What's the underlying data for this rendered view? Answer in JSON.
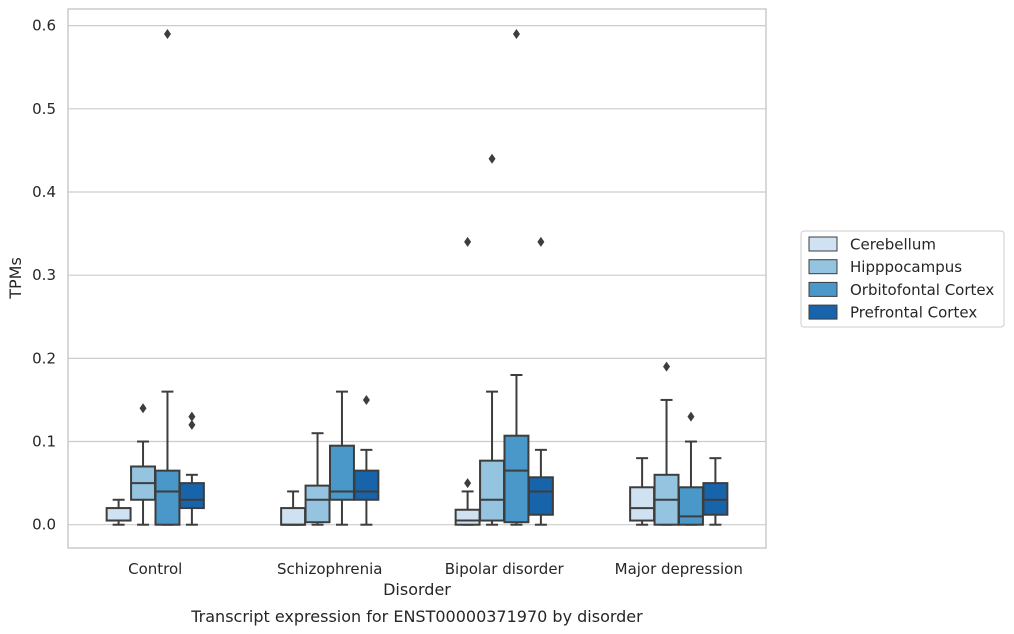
{
  "chart_data": {
    "type": "box",
    "title": "",
    "caption": "Transcript expression for ENST00000371970 by disorder",
    "xlabel": "Disorder",
    "ylabel": "TPMs",
    "ylim": [
      -0.028,
      0.62
    ],
    "yticks": [
      "0.0",
      "0.1",
      "0.2",
      "0.3",
      "0.4",
      "0.5",
      "0.6"
    ],
    "grid": true,
    "legend_position": "right",
    "categories": [
      "Control",
      "Schizophrenia",
      "Bipolar disorder",
      "Major depression"
    ],
    "series": [
      {
        "name": "Cerebellum",
        "color": "#d0e1f2",
        "boxes": [
          {
            "whislo": 0.0,
            "q1": 0.005,
            "med": 0.005,
            "q3": 0.02,
            "whishi": 0.03,
            "fliers": []
          },
          {
            "whislo": 0.0,
            "q1": 0.0,
            "med": 0.0,
            "q3": 0.02,
            "whishi": 0.04,
            "fliers": []
          },
          {
            "whislo": 0.0,
            "q1": 0.0,
            "med": 0.005,
            "q3": 0.018,
            "whishi": 0.04,
            "fliers": [
              0.05,
              0.34
            ]
          },
          {
            "whislo": 0.0,
            "q1": 0.005,
            "med": 0.02,
            "q3": 0.045,
            "whishi": 0.08,
            "fliers": []
          }
        ]
      },
      {
        "name": "Hipppocampus",
        "color": "#94c4df",
        "boxes": [
          {
            "whislo": 0.0,
            "q1": 0.03,
            "med": 0.05,
            "q3": 0.07,
            "whishi": 0.1,
            "fliers": [
              0.14
            ]
          },
          {
            "whislo": 0.0,
            "q1": 0.003,
            "med": 0.03,
            "q3": 0.047,
            "whishi": 0.11,
            "fliers": []
          },
          {
            "whislo": 0.0,
            "q1": 0.005,
            "med": 0.03,
            "q3": 0.077,
            "whishi": 0.16,
            "fliers": [
              0.44
            ]
          },
          {
            "whislo": 0.0,
            "q1": 0.0,
            "med": 0.03,
            "q3": 0.06,
            "whishi": 0.15,
            "fliers": [
              0.19
            ]
          }
        ]
      },
      {
        "name": "Orbitofontal Cortex",
        "color": "#4a98c9",
        "boxes": [
          {
            "whislo": 0.0,
            "q1": 0.0,
            "med": 0.04,
            "q3": 0.065,
            "whishi": 0.16,
            "fliers": [
              0.59
            ]
          },
          {
            "whislo": 0.0,
            "q1": 0.03,
            "med": 0.04,
            "q3": 0.095,
            "whishi": 0.16,
            "fliers": []
          },
          {
            "whislo": 0.0,
            "q1": 0.003,
            "med": 0.065,
            "q3": 0.107,
            "whishi": 0.18,
            "fliers": [
              0.59
            ]
          },
          {
            "whislo": 0.0,
            "q1": 0.0,
            "med": 0.01,
            "q3": 0.045,
            "whishi": 0.1,
            "fliers": [
              0.13
            ]
          }
        ]
      },
      {
        "name": "Prefrontal Cortex",
        "color": "#1764ab",
        "boxes": [
          {
            "whislo": 0.0,
            "q1": 0.02,
            "med": 0.03,
            "q3": 0.05,
            "whishi": 0.06,
            "fliers": [
              0.12,
              0.13
            ]
          },
          {
            "whislo": 0.0,
            "q1": 0.03,
            "med": 0.04,
            "q3": 0.065,
            "whishi": 0.09,
            "fliers": [
              0.15
            ]
          },
          {
            "whislo": 0.0,
            "q1": 0.012,
            "med": 0.04,
            "q3": 0.057,
            "whishi": 0.09,
            "fliers": [
              0.34
            ]
          },
          {
            "whislo": 0.0,
            "q1": 0.012,
            "med": 0.03,
            "q3": 0.05,
            "whishi": 0.08,
            "fliers": []
          }
        ]
      }
    ]
  }
}
